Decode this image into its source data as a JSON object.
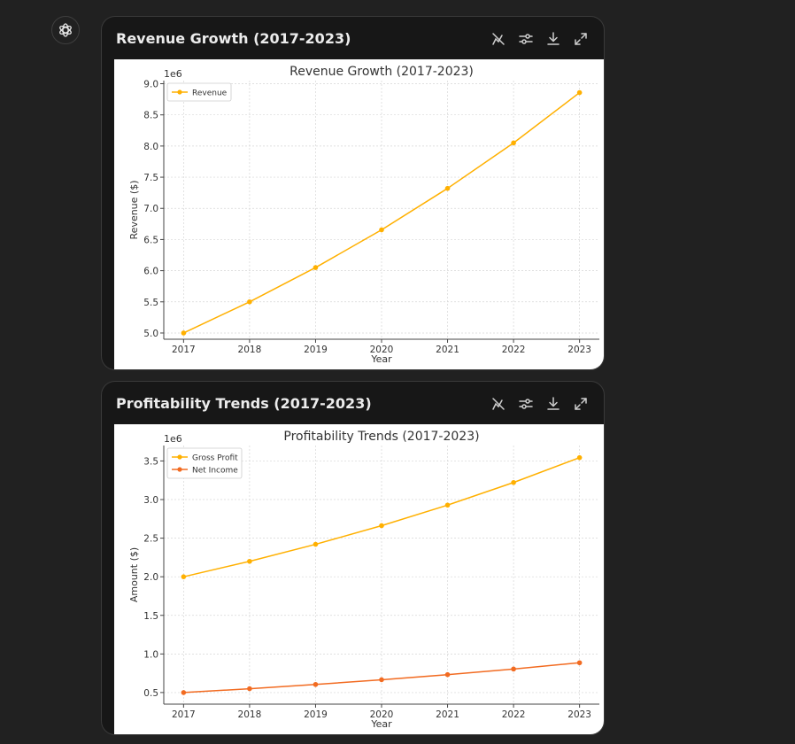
{
  "assistant": {
    "avatar_icon": "chatgpt-logo-icon"
  },
  "toolbar_icons": [
    "switch-to-interactive-icon",
    "customize-chart-icon",
    "download-icon",
    "expand-icon"
  ],
  "cards": [
    {
      "title": "Revenue Growth (2017-2023)"
    },
    {
      "title": "Profitability Trends (2017-2023)"
    }
  ],
  "chart_data": [
    {
      "type": "line",
      "title": "Revenue Growth (2017-2023)",
      "xlabel": "Year",
      "ylabel": "Revenue ($)",
      "y_offset_label": "1e6",
      "x": [
        2017,
        2018,
        2019,
        2020,
        2021,
        2022,
        2023
      ],
      "ylim": [
        4.9,
        9.05
      ],
      "y_ticks": [
        5.0,
        5.5,
        6.0,
        6.5,
        7.0,
        7.5,
        8.0,
        8.5,
        9.0
      ],
      "y_tick_labels": [
        "5.0",
        "5.5",
        "6.0",
        "6.5",
        "7.0",
        "7.5",
        "8.0",
        "8.5",
        "9.0"
      ],
      "grid": true,
      "legend": "upper-left",
      "series": [
        {
          "name": "Revenue",
          "color": "#FFB000",
          "values": [
            5.0,
            5.5,
            6.05,
            6.655,
            7.3205,
            8.05,
            8.857
          ]
        }
      ]
    },
    {
      "type": "line",
      "title": "Profitability Trends (2017-2023)",
      "xlabel": "Year",
      "ylabel": "Amount ($)",
      "y_offset_label": "1e6",
      "x": [
        2017,
        2018,
        2019,
        2020,
        2021,
        2022,
        2023
      ],
      "ylim": [
        0.35,
        3.7
      ],
      "y_ticks": [
        0.5,
        1.0,
        1.5,
        2.0,
        2.5,
        3.0,
        3.5
      ],
      "y_tick_labels": [
        "0.5",
        "1.0",
        "1.5",
        "2.0",
        "2.5",
        "3.0",
        "3.5"
      ],
      "grid": true,
      "legend": "upper-left",
      "series": [
        {
          "name": "Gross Profit",
          "color": "#FFB000",
          "values": [
            2.0,
            2.2,
            2.42,
            2.662,
            2.928,
            3.221,
            3.543
          ]
        },
        {
          "name": "Net Income",
          "color": "#F26B21",
          "values": [
            0.5,
            0.55,
            0.605,
            0.666,
            0.732,
            0.805,
            0.886
          ]
        }
      ]
    }
  ]
}
